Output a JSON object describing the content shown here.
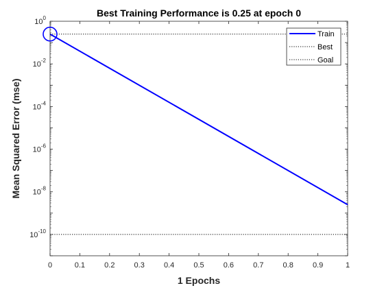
{
  "chart_data": {
    "type": "line",
    "title": "Best Training Performance is 0.25 at epoch 0",
    "xlabel": "1 Epochs",
    "ylabel": "Mean Squared Error  (mse)",
    "xlim": [
      0,
      1
    ],
    "ylim_log10": [
      -11,
      0
    ],
    "yscale": "log",
    "x_ticks": [
      "0",
      "0.1",
      "0.2",
      "0.3",
      "0.4",
      "0.5",
      "0.6",
      "0.7",
      "0.8",
      "0.9",
      "1"
    ],
    "y_ticks": [
      {
        "base": "10",
        "exp": "0",
        "value": 1
      },
      {
        "base": "10",
        "exp": "-2",
        "value": 0.01
      },
      {
        "base": "10",
        "exp": "-4",
        "value": 0.0001
      },
      {
        "base": "10",
        "exp": "-6",
        "value": 1e-06
      },
      {
        "base": "10",
        "exp": "-8",
        "value": 1e-08
      },
      {
        "base": "10",
        "exp": "-10",
        "value": 1e-10
      }
    ],
    "series": [
      {
        "name": "Train",
        "x": [
          0,
          1
        ],
        "y": [
          0.25,
          2.5e-09
        ],
        "color": "#0000ff",
        "style": "solid"
      },
      {
        "name": "Best",
        "x": [
          0,
          1
        ],
        "y": [
          0.25,
          0.25
        ],
        "color": "#000000",
        "style": "dotted"
      },
      {
        "name": "Goal",
        "x": [
          0,
          1
        ],
        "y": [
          1e-10,
          1e-10
        ],
        "color": "#000000",
        "style": "dotted"
      }
    ],
    "best_marker": {
      "x": 0,
      "y": 0.25,
      "shape": "circle",
      "color": "#0000ff"
    },
    "legend": {
      "placement": "top-right",
      "entries": [
        "Train",
        "Best",
        "Goal"
      ]
    },
    "grid": false
  }
}
